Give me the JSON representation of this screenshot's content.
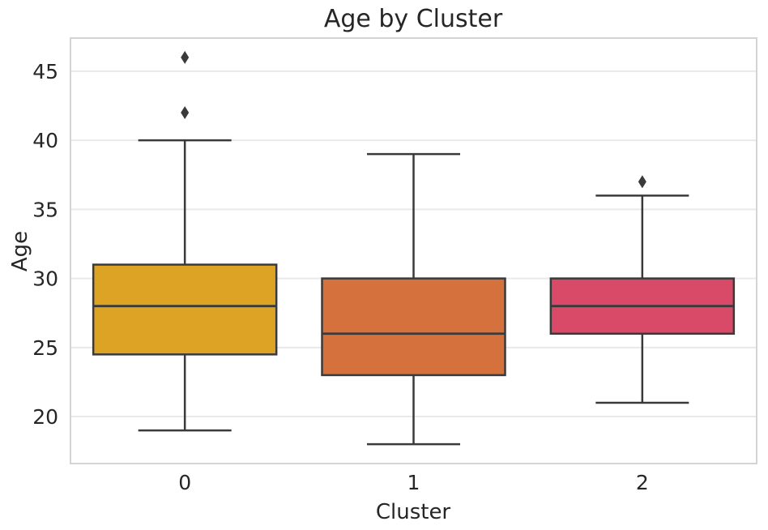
{
  "figure": {
    "background": "#ffffff"
  },
  "chart_data": {
    "type": "boxplot",
    "title": "Age by Cluster",
    "xlabel": "Cluster",
    "ylabel": "Age",
    "categories": [
      "0",
      "1",
      "2"
    ],
    "yticks": [
      20,
      25,
      30,
      35,
      40,
      45
    ],
    "ylim": [
      16.6,
      47.4
    ],
    "grid": "horizontal-only",
    "legend": "none",
    "series": [
      {
        "category": "0",
        "whisker_low": 19,
        "q1": 24.5,
        "median": 28,
        "q3": 31,
        "whisker_high": 40,
        "outliers": [
          42,
          46
        ],
        "box_color": "#dda324"
      },
      {
        "category": "1",
        "whisker_low": 18,
        "q1": 23,
        "median": 26,
        "q3": 30,
        "whisker_high": 39,
        "outliers": [],
        "box_color": "#d5713c"
      },
      {
        "category": "2",
        "whisker_low": 21,
        "q1": 26,
        "median": 28,
        "q3": 30,
        "whisker_high": 36,
        "outliers": [
          37
        ],
        "box_color": "#d84a68"
      }
    ],
    "colors": {
      "edge": "#3a3a3a",
      "median": "#3a3a3a",
      "flier": "#3a3a3a",
      "grid": "#e9e9e9",
      "axes_border": "#d4d4d4",
      "text": "#262626"
    }
  }
}
